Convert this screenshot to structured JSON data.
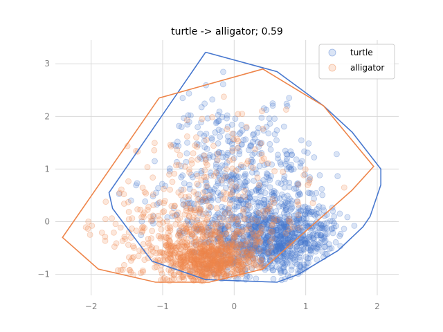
{
  "chart_data": {
    "type": "scatter",
    "title": "turtle -> alligator; 0.59",
    "xlabel": "",
    "ylabel": "",
    "xlim": [
      -2.5,
      2.3
    ],
    "ylim": [
      -1.4,
      3.45
    ],
    "x_ticks": [
      -2,
      -1,
      0,
      1,
      2
    ],
    "y_ticks": [
      -1,
      0,
      1,
      2,
      3
    ],
    "x_tick_labels": [
      "−2",
      "−1",
      "0",
      "1",
      "2"
    ],
    "y_tick_labels": [
      "−1",
      "0",
      "1",
      "2",
      "3"
    ],
    "grid": true,
    "legend_position": "top-right",
    "series": [
      {
        "name": "turtle",
        "color": "#4878cf",
        "point_count_estimate": 2500,
        "cloud_description": "dense cloud centered near (0.6, -0.4), spreading up-left to (-0.4, 3.2)",
        "hull": [
          [
            -0.4,
            3.22
          ],
          [
            0.6,
            2.85
          ],
          [
            1.25,
            2.2
          ],
          [
            1.65,
            1.7
          ],
          [
            2.05,
            1.0
          ],
          [
            2.05,
            0.7
          ],
          [
            1.9,
            0.1
          ],
          [
            1.8,
            -0.1
          ],
          [
            1.45,
            -0.55
          ],
          [
            0.9,
            -1.0
          ],
          [
            0.6,
            -1.15
          ],
          [
            -0.4,
            -1.1
          ],
          [
            -1.15,
            -0.75
          ],
          [
            -1.7,
            0.25
          ],
          [
            -1.75,
            0.55
          ],
          [
            -0.4,
            3.22
          ]
        ]
      },
      {
        "name": "alligator",
        "color": "#ee854a",
        "point_count_estimate": 2000,
        "cloud_description": "dense cloud centered near (-0.3, -0.8), spreading left to (-2.4, -0.3)",
        "hull": [
          [
            -1.05,
            2.35
          ],
          [
            0.4,
            2.9
          ],
          [
            1.25,
            2.2
          ],
          [
            1.95,
            1.05
          ],
          [
            1.65,
            0.6
          ],
          [
            0.4,
            -0.9
          ],
          [
            -0.35,
            -1.15
          ],
          [
            -1.1,
            -1.15
          ],
          [
            -1.9,
            -0.9
          ],
          [
            -2.4,
            -0.3
          ],
          [
            -1.05,
            2.35
          ]
        ]
      }
    ]
  }
}
